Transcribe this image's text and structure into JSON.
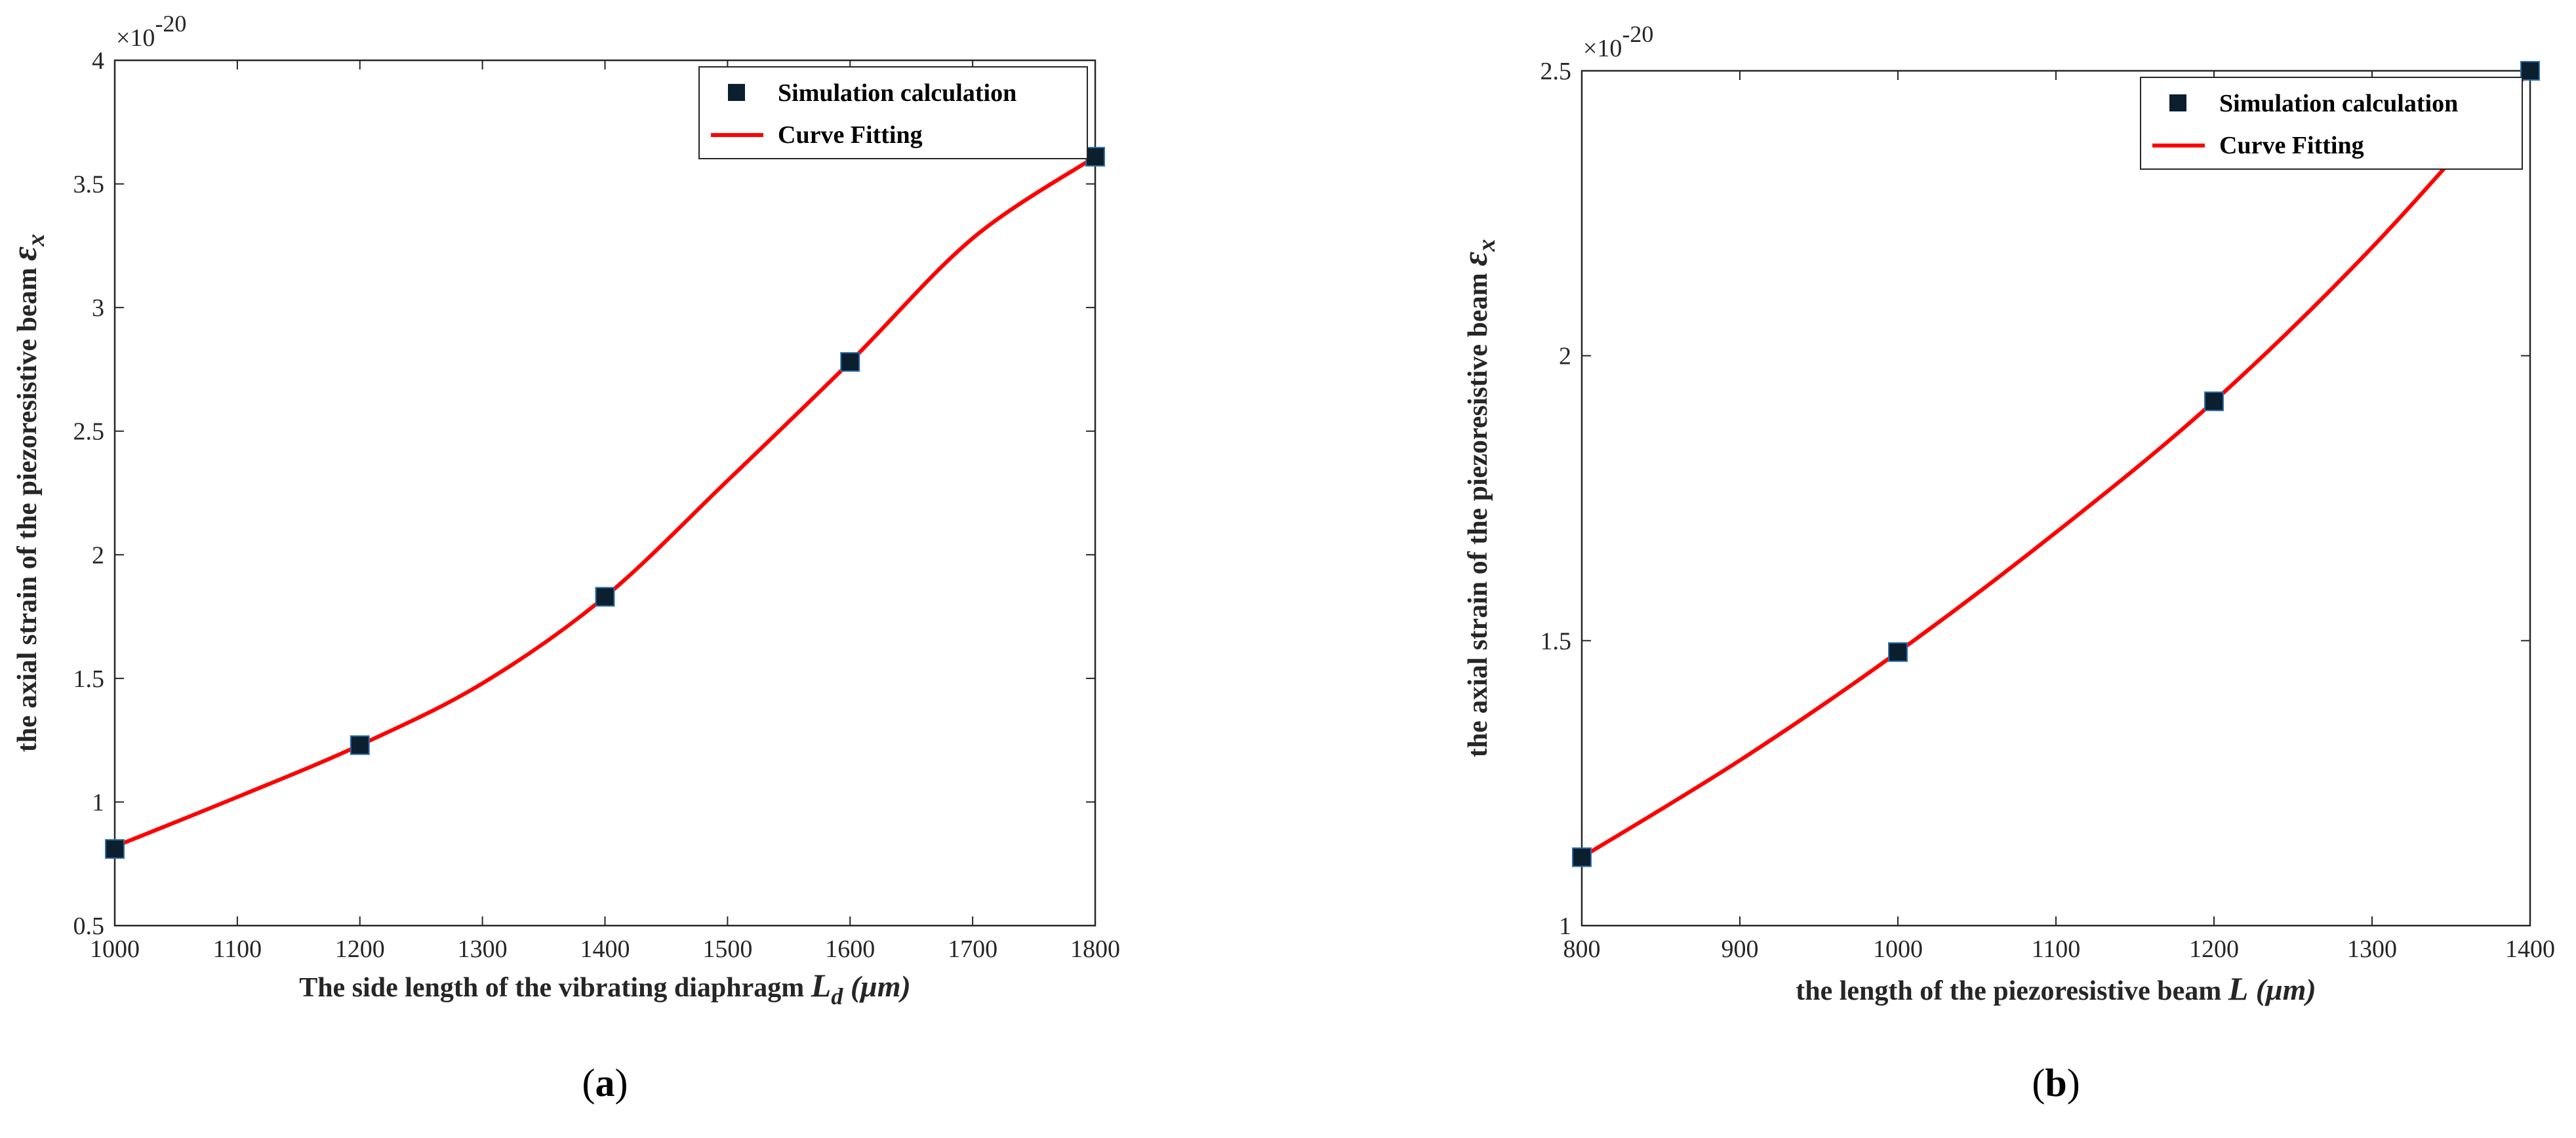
{
  "chart_data": [
    {
      "type": "line",
      "panel_label": "a",
      "xlabel_text": "The side length of the vibrating diaphragm",
      "xlabel_symbol": "L",
      "xlabel_subscript": "d",
      "xlabel_unit": "(μm)",
      "ylabel_text": "the axial strain of the piezoresistive beam",
      "ylabel_symbol": "ε",
      "ylabel_subscript": "x",
      "exponent_base": "×10",
      "exponent_power": "-20",
      "xlim": [
        1000,
        1800
      ],
      "ylim": [
        0.5,
        4
      ],
      "xticks": [
        "1000",
        "1100",
        "1200",
        "1300",
        "1400",
        "1500",
        "1600",
        "1700",
        "1800"
      ],
      "yticks": [
        "0.5",
        "1",
        "1.5",
        "2",
        "2.5",
        "3",
        "3.5",
        "4"
      ],
      "legend": [
        "Simulation calculation",
        "Curve Fitting"
      ],
      "series": [
        {
          "name": "Simulation calculation",
          "marker": "square",
          "x": [
            1000,
            1200,
            1400,
            1600,
            1800
          ],
          "y": [
            0.81,
            1.23,
            1.83,
            2.78,
            3.61
          ]
        },
        {
          "name": "Curve Fitting",
          "style": "line",
          "color": "#ff0000",
          "x": [
            1000,
            1100,
            1200,
            1300,
            1400,
            1500,
            1600,
            1700,
            1800
          ],
          "y": [
            0.82,
            1.02,
            1.23,
            1.48,
            1.83,
            2.3,
            2.78,
            3.28,
            3.61
          ]
        }
      ]
    },
    {
      "type": "line",
      "panel_label": "b",
      "xlabel_text": "the length of the piezoresistive beam",
      "xlabel_symbol": "L",
      "xlabel_subscript": "",
      "xlabel_unit": "(μm)",
      "ylabel_text": "the axial strain of the piezoresistive beam",
      "ylabel_symbol": "ε",
      "ylabel_subscript": "x",
      "exponent_base": "×10",
      "exponent_power": "-20",
      "xlim": [
        800,
        1400
      ],
      "ylim": [
        1,
        2.5
      ],
      "xticks": [
        "800",
        "900",
        "1000",
        "1100",
        "1200",
        "1300",
        "1400"
      ],
      "yticks": [
        "1",
        "1.5",
        "2",
        "2.5"
      ],
      "legend": [
        "Simulation calculation",
        "Curve Fitting"
      ],
      "series": [
        {
          "name": "Simulation calculation",
          "marker": "square",
          "x": [
            800,
            1000,
            1200,
            1400
          ],
          "y": [
            1.12,
            1.48,
            1.92,
            2.5
          ]
        },
        {
          "name": "Curve Fitting",
          "style": "line",
          "color": "#ff0000",
          "x": [
            800,
            900,
            1000,
            1100,
            1200,
            1300,
            1400
          ],
          "y": [
            1.12,
            1.29,
            1.48,
            1.69,
            1.92,
            2.19,
            2.5
          ]
        }
      ]
    }
  ],
  "colors": {
    "fit_line": "#ff0000",
    "marker_fill": "#0b1f2e",
    "axis": "#262626"
  }
}
